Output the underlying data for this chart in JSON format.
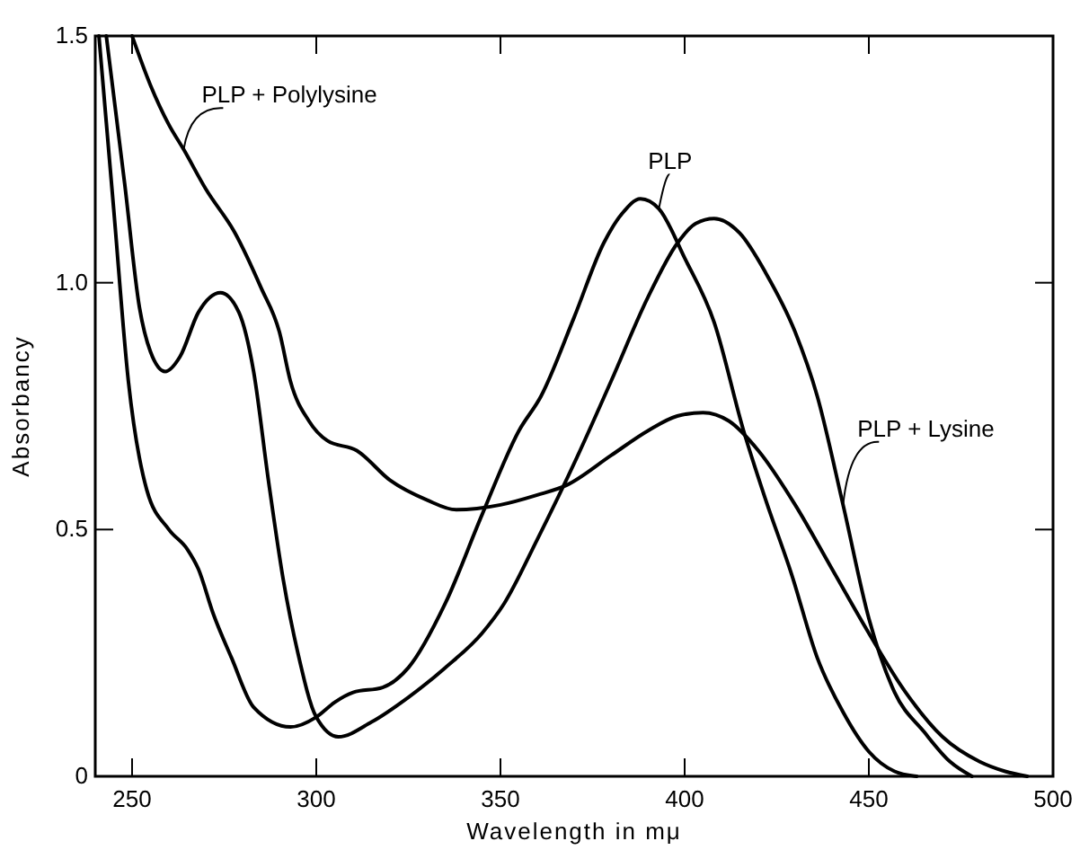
{
  "chart_data": {
    "type": "line",
    "xlabel": "Wavelength  in mμ",
    "ylabel": "Absorbancy",
    "xlim": [
      240,
      500
    ],
    "ylim": [
      0,
      1.5
    ],
    "xticks": [
      250,
      300,
      350,
      400,
      450,
      500
    ],
    "yticks": [
      0,
      0.5,
      {
        "value": 1,
        "label": "1.0"
      },
      1.5
    ],
    "grid": false,
    "marker": "none",
    "line_style": "solid",
    "series": [
      {
        "name": "PLP + Polylysine",
        "color": "#000000",
        "x": [
          250,
          255,
          260,
          264,
          270,
          278,
          285,
          290,
          293,
          298,
          303,
          311,
          320,
          330,
          338,
          350,
          360,
          368,
          380,
          390,
          398,
          405,
          412,
          420,
          430,
          440,
          450,
          460,
          470,
          480,
          487,
          493
        ],
        "values": [
          1.5,
          1.4,
          1.32,
          1.27,
          1.19,
          1.1,
          0.99,
          0.9,
          0.8,
          0.72,
          0.68,
          0.66,
          0.6,
          0.56,
          0.54,
          0.55,
          0.57,
          0.59,
          0.65,
          0.7,
          0.73,
          0.737,
          0.72,
          0.66,
          0.55,
          0.42,
          0.29,
          0.17,
          0.08,
          0.03,
          0.01,
          0
        ]
      },
      {
        "name": "PLP",
        "color": "#000000",
        "x": [
          241,
          245,
          249,
          254,
          260,
          265,
          268,
          272,
          277,
          283,
          293,
          300,
          305,
          310,
          318,
          325,
          335,
          345,
          355,
          361,
          370,
          378,
          383,
          388,
          393,
          400,
          408,
          416,
          422,
          429,
          436,
          443,
          450,
          457,
          463
        ],
        "values": [
          1.5,
          1.15,
          0.8,
          0.58,
          0.5,
          0.46,
          0.42,
          0.33,
          0.24,
          0.14,
          0.1,
          0.12,
          0.15,
          0.17,
          0.18,
          0.22,
          0.35,
          0.53,
          0.7,
          0.77,
          0.93,
          1.08,
          1.14,
          1.17,
          1.15,
          1.05,
          0.92,
          0.7,
          0.56,
          0.41,
          0.24,
          0.13,
          0.05,
          0.01,
          0
        ]
      },
      {
        "name": "PLP + Lysine",
        "color": "#000000",
        "x": [
          243,
          248,
          252,
          255,
          259,
          263,
          268,
          274,
          279,
          283,
          287,
          291,
          295,
          300,
          306,
          315,
          325,
          335,
          345,
          351,
          360,
          371,
          380,
          390,
          398,
          403,
          408,
          415,
          422,
          430,
          436,
          443,
          450,
          457,
          465,
          472,
          478
        ],
        "values": [
          1.5,
          1.2,
          0.95,
          0.86,
          0.82,
          0.85,
          0.94,
          0.98,
          0.94,
          0.82,
          0.6,
          0.4,
          0.25,
          0.12,
          0.08,
          0.11,
          0.16,
          0.22,
          0.29,
          0.35,
          0.48,
          0.65,
          0.8,
          0.97,
          1.08,
          1.12,
          1.13,
          1.1,
          1.02,
          0.9,
          0.77,
          0.55,
          0.32,
          0.17,
          0.09,
          0.03,
          0
        ]
      }
    ]
  }
}
